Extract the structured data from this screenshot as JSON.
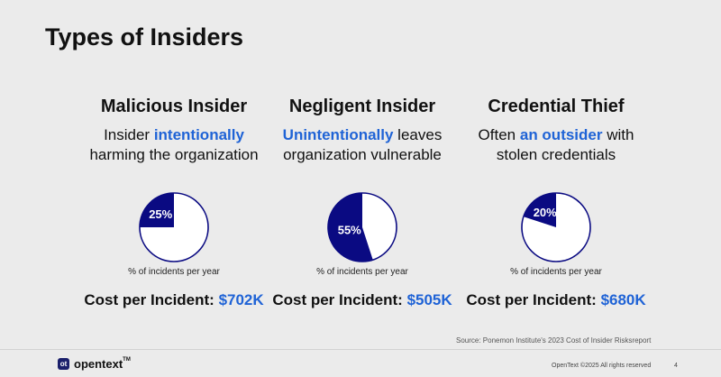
{
  "title": "Types of Insiders",
  "colors": {
    "pie_fill": "#0a0a82",
    "pie_bg": "#ffffff",
    "highlight": "#1f63d6"
  },
  "columns": [
    {
      "heading": "Malicious Insider",
      "desc1_pre": "Insider ",
      "desc1_highlight": "intentionally",
      "desc1_post": "",
      "desc2": "harming the organization",
      "percent": 25,
      "percent_label": "25%",
      "caption": "% of incidents per year",
      "cost_label": "Cost per Incident: ",
      "cost_value": "$702K"
    },
    {
      "heading": "Negligent Insider",
      "desc1_pre": "",
      "desc1_highlight": "Unintentionally",
      "desc1_post": " leaves",
      "desc2": "organization vulnerable",
      "percent": 55,
      "percent_label": "55%",
      "caption": "% of incidents per year",
      "cost_label": "Cost per Incident: ",
      "cost_value": "$505K"
    },
    {
      "heading": "Credential Thief",
      "desc1_pre": "Often ",
      "desc1_highlight": "an outsider",
      "desc1_post": " with",
      "desc2": "stolen credentials",
      "percent": 20,
      "percent_label": "20%",
      "caption": "% of incidents per year",
      "cost_label": "Cost per Incident: ",
      "cost_value": "$680K"
    }
  ],
  "source": "Source: Ponemon Institute's 2023 Cost of Insider Risksreport",
  "logo": {
    "text": "opentext",
    "tm": "TM",
    "mark": "ot"
  },
  "copyright": "OpenText ©2025 All rights reserved",
  "page_number": "4"
}
